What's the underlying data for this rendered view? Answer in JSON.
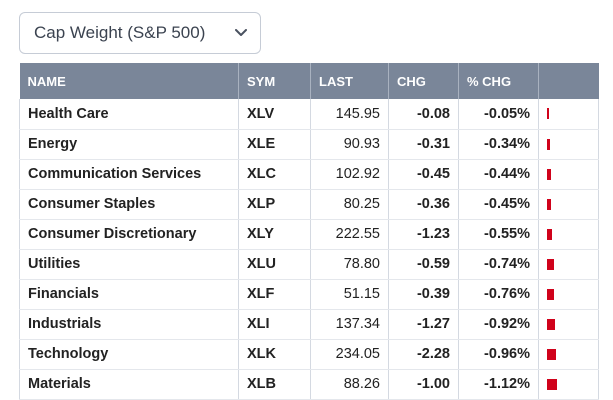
{
  "dropdown": {
    "selected": "Cap Weight (S&P 500)"
  },
  "table": {
    "headers": [
      "NAME",
      "SYM",
      "LAST",
      "CHG",
      "% CHG",
      ""
    ],
    "rows": [
      {
        "name": "Health Care",
        "sym": "XLV",
        "last": "145.95",
        "chg": "-0.08",
        "pct": "-0.05%",
        "bar": 0.05
      },
      {
        "name": "Energy",
        "sym": "XLE",
        "last": "90.93",
        "chg": "-0.31",
        "pct": "-0.34%",
        "bar": 0.34
      },
      {
        "name": "Communication Services",
        "sym": "XLC",
        "last": "102.92",
        "chg": "-0.45",
        "pct": "-0.44%",
        "bar": 0.44
      },
      {
        "name": "Consumer Staples",
        "sym": "XLP",
        "last": "80.25",
        "chg": "-0.36",
        "pct": "-0.45%",
        "bar": 0.45
      },
      {
        "name": "Consumer Discretionary",
        "sym": "XLY",
        "last": "222.55",
        "chg": "-1.23",
        "pct": "-0.55%",
        "bar": 0.55
      },
      {
        "name": "Utilities",
        "sym": "XLU",
        "last": "78.80",
        "chg": "-0.59",
        "pct": "-0.74%",
        "bar": 0.74
      },
      {
        "name": "Financials",
        "sym": "XLF",
        "last": "51.15",
        "chg": "-0.39",
        "pct": "-0.76%",
        "bar": 0.76
      },
      {
        "name": "Industrials",
        "sym": "XLI",
        "last": "137.34",
        "chg": "-1.27",
        "pct": "-0.92%",
        "bar": 0.92
      },
      {
        "name": "Technology",
        "sym": "XLK",
        "last": "234.05",
        "chg": "-2.28",
        "pct": "-0.96%",
        "bar": 0.96
      },
      {
        "name": "Materials",
        "sym": "XLB",
        "last": "88.26",
        "chg": "-1.00",
        "pct": "-1.12%",
        "bar": 1.12
      }
    ]
  },
  "colors": {
    "negative": "#d0021b",
    "header_bg": "#7a8699",
    "link": "#1f4e8c"
  },
  "icons": {
    "dropdown": "chevron-down-icon"
  }
}
